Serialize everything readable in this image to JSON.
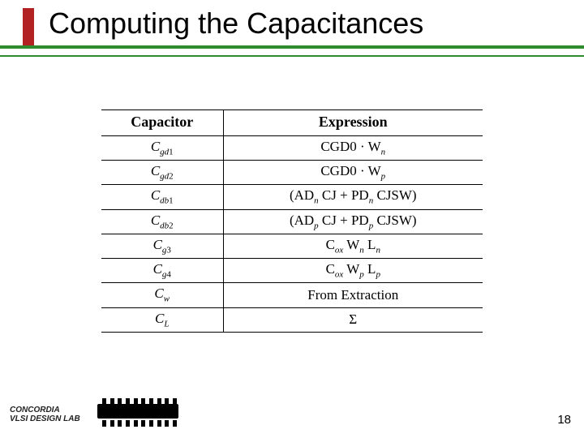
{
  "title": "Computing the Capacitances",
  "accent_color": "#b22222",
  "rule_color": "#2e8b2e",
  "table": {
    "headers": {
      "cap": "Capacitor",
      "exp": "Expression"
    },
    "rows": [
      {
        "cap_base": "C",
        "cap_sub": "gd",
        "cap_num": "1",
        "exp_html": "CGD0 · W<span class='sub'>n</span>"
      },
      {
        "cap_base": "C",
        "cap_sub": "gd",
        "cap_num": "2",
        "exp_html": "CGD0 · W<span class='sub'>p</span>"
      },
      {
        "cap_base": "C",
        "cap_sub": "db",
        "cap_num": "1",
        "exp_html": "(AD<span class='sub'>n</span> CJ + PD<span class='sub'>n</span> CJSW)"
      },
      {
        "cap_base": "C",
        "cap_sub": "db",
        "cap_num": "2",
        "exp_html": "(AD<span class='sub'>p</span> CJ + PD<span class='sub'>p</span> CJSW)"
      },
      {
        "cap_base": "C",
        "cap_sub": "g",
        "cap_num": "3",
        "exp_html": "C<span class='sub'>ox</span> W<span class='sub'>n</span> L<span class='sub'>n</span>"
      },
      {
        "cap_base": "C",
        "cap_sub": "g",
        "cap_num": "4",
        "exp_html": "C<span class='sub'>ox</span> W<span class='sub'>p</span> L<span class='sub'>p</span>"
      },
      {
        "cap_base": "C",
        "cap_sub": "w",
        "cap_num": "",
        "exp_html": "From Extraction"
      },
      {
        "cap_base": "C",
        "cap_sub": "L",
        "cap_num": "",
        "exp_html": "&#931;"
      }
    ]
  },
  "footer": {
    "line1": "CONCORDIA",
    "line2": "VLSI DESIGN LAB",
    "page": "18"
  }
}
